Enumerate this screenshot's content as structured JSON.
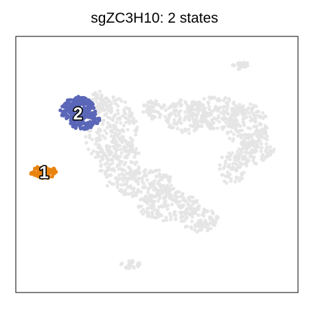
{
  "chart_data": {
    "type": "scatter",
    "title": "sgZC3H10: 2 states",
    "xlabel": "",
    "ylabel": "",
    "xlim": [
      0,
      100
    ],
    "ylim": [
      0,
      100
    ],
    "grid": false,
    "axis_ticks": false,
    "colors": {
      "background_cells": "#e4e4e4",
      "state_1": "#e8830f",
      "state_2": "#5a66b7",
      "label_fill": "#ffffff",
      "label_stroke": "#000000"
    },
    "states": [
      {
        "label": "1",
        "center": [
          10,
          47
        ],
        "color": "#e8830f"
      },
      {
        "label": "2",
        "center": [
          22,
          70
        ],
        "color": "#5a66b7"
      }
    ]
  }
}
